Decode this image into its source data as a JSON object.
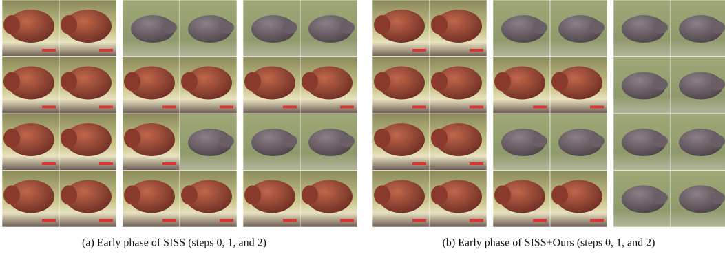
{
  "captions": [
    "(a) Early phase of SISS (steps 0, 1, and 2)",
    "(b) Early phase of SISS+Ours (steps 0, 1, and 2)"
  ]
}
